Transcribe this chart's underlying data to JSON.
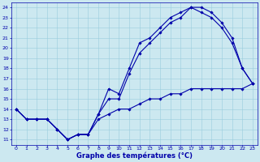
{
  "xlabel": "Graphe des températures (°C)",
  "background_color": "#cce8f0",
  "grid_color": "#99ccdd",
  "line_color": "#0000aa",
  "xlim": [
    -0.5,
    23.5
  ],
  "ylim": [
    10.5,
    24.5
  ],
  "x_ticks": [
    0,
    1,
    2,
    3,
    4,
    5,
    6,
    7,
    8,
    9,
    10,
    11,
    12,
    13,
    14,
    15,
    16,
    17,
    18,
    19,
    20,
    21,
    22,
    23
  ],
  "y_ticks": [
    11,
    12,
    13,
    14,
    15,
    16,
    17,
    18,
    19,
    20,
    21,
    22,
    23,
    24
  ],
  "line1_x": [
    0,
    1,
    2,
    3,
    4,
    5,
    6,
    7,
    8,
    9,
    10,
    11,
    12,
    13,
    14,
    15,
    16,
    17,
    18,
    19,
    20,
    21,
    22,
    23
  ],
  "line1_y": [
    14,
    13,
    13,
    13,
    12,
    11,
    11.5,
    11.5,
    13.5,
    16,
    15.5,
    18,
    20.5,
    21,
    22,
    23,
    23.5,
    24,
    24,
    23.5,
    22.5,
    21,
    18,
    16.5
  ],
  "line2_x": [
    0,
    1,
    2,
    3,
    4,
    5,
    6,
    7,
    8,
    9,
    10,
    11,
    12,
    13,
    14,
    15,
    16,
    17,
    18,
    19,
    20,
    21,
    22,
    23
  ],
  "line2_y": [
    14,
    13,
    13,
    13,
    12,
    11,
    11.5,
    11.5,
    13.5,
    15,
    15,
    17.5,
    19.5,
    20.5,
    21.5,
    22.5,
    23,
    24,
    23.5,
    23,
    22,
    20.5,
    18,
    16.5
  ],
  "line3_x": [
    0,
    1,
    2,
    3,
    4,
    5,
    6,
    7,
    8,
    9,
    10,
    11,
    12,
    13,
    14,
    15,
    16,
    17,
    18,
    19,
    20,
    21,
    22,
    23
  ],
  "line3_y": [
    14,
    13,
    13,
    13,
    12,
    11,
    11.5,
    11.5,
    13,
    13.5,
    14,
    14,
    14.5,
    15,
    15,
    15.5,
    15.5,
    16,
    16,
    16,
    16,
    16,
    16,
    16.5
  ]
}
